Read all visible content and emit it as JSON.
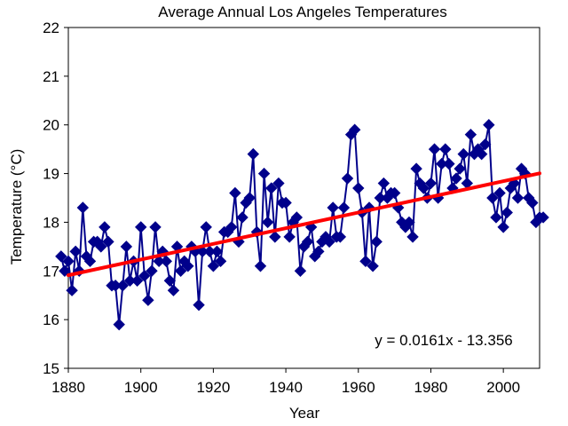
{
  "chart_data": {
    "type": "line",
    "title": "Average Annual  Los Angeles  Temperatures",
    "xlabel": "Year",
    "ylabel": "Temperature  (°C)",
    "xlim": [
      1880,
      2010
    ],
    "ylim": [
      15,
      22
    ],
    "x_ticks": [
      1880,
      1900,
      1920,
      1940,
      1960,
      1980,
      2000
    ],
    "y_ticks": [
      15,
      16,
      17,
      18,
      19,
      20,
      21,
      22
    ],
    "grid": false,
    "legend": "none",
    "series": [
      {
        "marker": "diamond",
        "color": "#00008B",
        "x": [
          1878,
          1879,
          1880,
          1881,
          1882,
          1883,
          1884,
          1885,
          1886,
          1887,
          1888,
          1889,
          1890,
          1891,
          1892,
          1893,
          1894,
          1895,
          1896,
          1897,
          1898,
          1899,
          1900,
          1901,
          1902,
          1903,
          1904,
          1905,
          1906,
          1907,
          1908,
          1909,
          1910,
          1911,
          1912,
          1913,
          1914,
          1915,
          1916,
          1917,
          1918,
          1919,
          1920,
          1921,
          1922,
          1923,
          1924,
          1925,
          1926,
          1927,
          1928,
          1929,
          1930,
          1931,
          1932,
          1933,
          1934,
          1935,
          1936,
          1937,
          1938,
          1939,
          1940,
          1941,
          1942,
          1943,
          1944,
          1945,
          1946,
          1947,
          1948,
          1949,
          1950,
          1951,
          1952,
          1953,
          1954,
          1955,
          1956,
          1957,
          1958,
          1959,
          1960,
          1961,
          1962,
          1963,
          1964,
          1965,
          1966,
          1967,
          1968,
          1969,
          1970,
          1971,
          1972,
          1973,
          1974,
          1975,
          1976,
          1977,
          1978,
          1979,
          1980,
          1981,
          1982,
          1983,
          1984,
          1985,
          1986,
          1987,
          1988,
          1989,
          1990,
          1991,
          1992,
          1993,
          1994,
          1995,
          1996,
          1997,
          1998,
          1999,
          2000,
          2001,
          2002,
          2003,
          2004,
          2005,
          2006,
          2007,
          2008,
          2009,
          2010,
          2011
        ],
        "y": [
          17.3,
          17.0,
          17.2,
          16.6,
          17.4,
          17.0,
          18.3,
          17.3,
          17.2,
          17.6,
          17.6,
          17.5,
          17.9,
          17.6,
          16.7,
          16.7,
          15.9,
          16.7,
          17.5,
          16.8,
          17.2,
          16.8,
          17.9,
          16.9,
          16.4,
          17.0,
          17.9,
          17.2,
          17.4,
          17.2,
          16.8,
          16.6,
          17.5,
          17.0,
          17.2,
          17.1,
          17.5,
          17.4,
          16.3,
          17.4,
          17.9,
          17.4,
          17.1,
          17.4,
          17.2,
          17.8,
          17.8,
          17.9,
          18.6,
          17.6,
          18.1,
          18.4,
          18.5,
          19.4,
          17.8,
          17.1,
          19.0,
          18.0,
          18.7,
          17.7,
          18.8,
          18.4,
          18.4,
          17.7,
          18.0,
          18.1,
          17.0,
          17.5,
          17.6,
          17.9,
          17.3,
          17.4,
          17.6,
          17.7,
          17.6,
          18.3,
          17.7,
          17.7,
          18.3,
          18.9,
          19.8,
          19.9,
          18.7,
          18.2,
          17.2,
          18.3,
          17.1,
          17.6,
          18.5,
          18.8,
          18.5,
          18.6,
          18.6,
          18.3,
          18.0,
          17.9,
          18.0,
          17.7,
          19.1,
          18.8,
          18.7,
          18.5,
          18.8,
          19.5,
          18.5,
          19.2,
          19.5,
          19.2,
          18.7,
          18.9,
          19.1,
          19.4,
          18.8,
          19.8,
          19.4,
          19.5,
          19.4,
          19.6,
          20.0,
          18.5,
          18.1,
          18.6,
          17.9,
          18.2,
          18.7,
          18.8,
          18.5,
          19.1,
          19.0,
          18.5,
          18.4,
          18.0,
          18.1,
          18.1
        ]
      }
    ],
    "trendline": {
      "color": "#FF0000",
      "slope": 0.0161,
      "intercept": -13.356,
      "x_range": [
        1880,
        2010
      ],
      "equation_label": "y = 0.0161x - 13.356"
    }
  }
}
